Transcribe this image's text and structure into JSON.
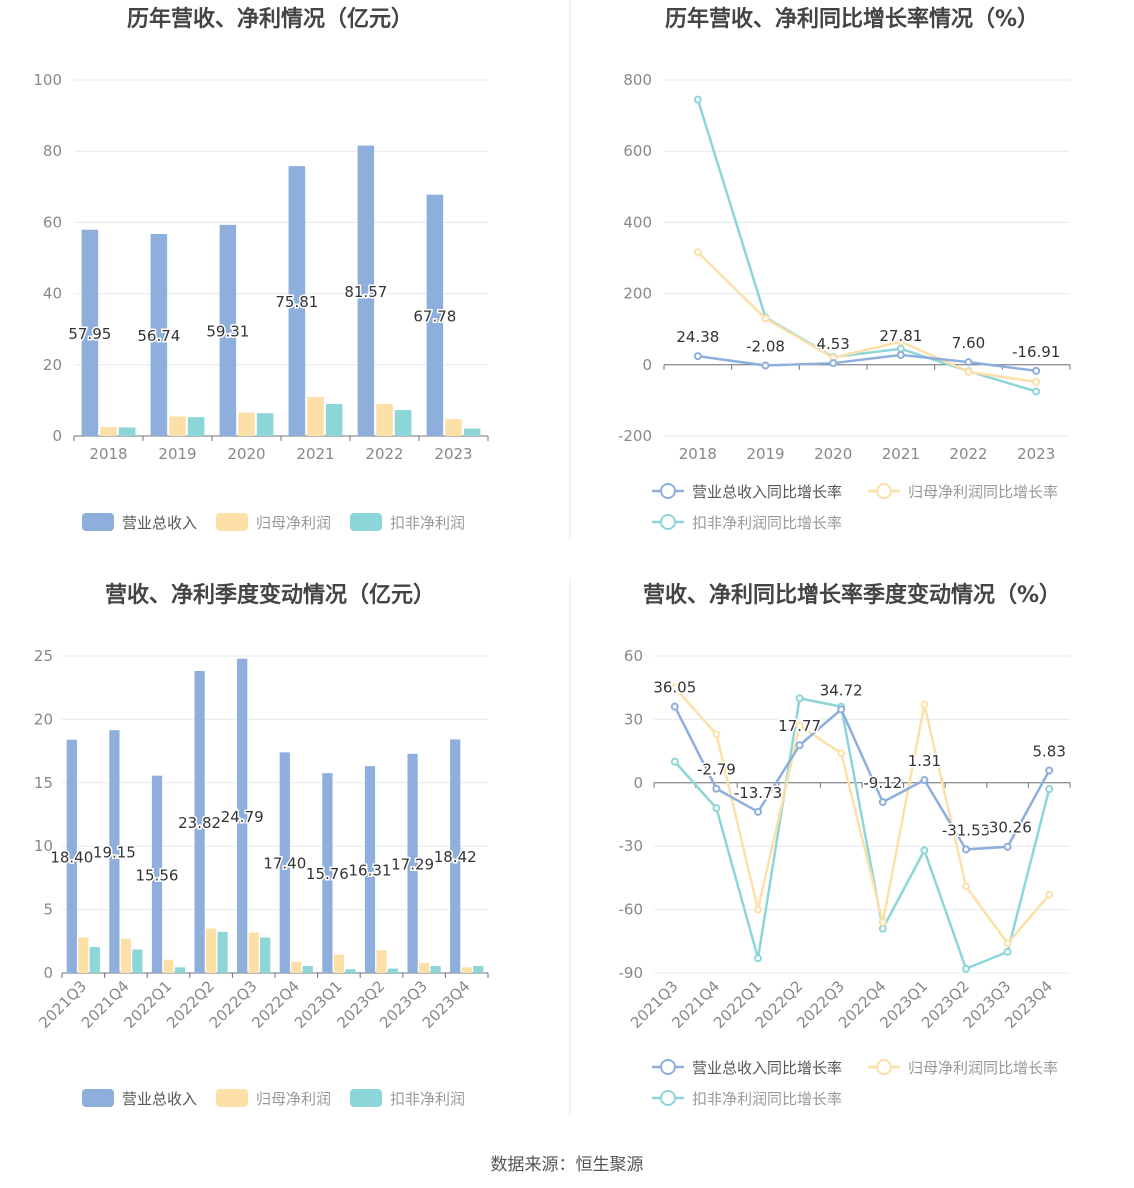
{
  "colors": {
    "revenue": "#8eaedc",
    "net_profit": "#fde0a8",
    "deducted_profit": "#8dd6d8",
    "axis_text": "#888888",
    "grid": "#e6e9f0",
    "title": "#444444"
  },
  "source": "数据来源：恒生聚源",
  "chart_data": [
    {
      "type": "bar",
      "title": "历年营收、净利情况（亿元）",
      "categories": [
        "2018",
        "2019",
        "2020",
        "2021",
        "2022",
        "2023"
      ],
      "ylim": [
        0,
        100
      ],
      "yticks": [
        0,
        20,
        40,
        60,
        80,
        100
      ],
      "legend": "bottom",
      "series": [
        {
          "name": "营业总收入",
          "values": [
            57.95,
            56.74,
            59.31,
            75.81,
            81.57,
            67.78
          ],
          "labels": [
            "57.95",
            "56.74",
            "59.31",
            "75.81",
            "81.57",
            "67.78"
          ]
        },
        {
          "name": "归母净利润",
          "values": [
            2.5,
            5.5,
            6.6,
            11.0,
            9.0,
            4.7
          ]
        },
        {
          "name": "扣非净利润",
          "values": [
            2.4,
            5.3,
            6.4,
            9.0,
            7.3,
            2.1
          ]
        }
      ]
    },
    {
      "type": "line",
      "title": "历年营收、净利同比增长率情况（%）",
      "categories": [
        "2018",
        "2019",
        "2020",
        "2021",
        "2022",
        "2023"
      ],
      "ylim": [
        -200,
        800
      ],
      "yticks": [
        -200,
        0,
        200,
        400,
        600,
        800
      ],
      "legend": "bottom",
      "series": [
        {
          "name": "营业总收入同比增长率",
          "values": [
            24.38,
            -2.08,
            4.53,
            27.81,
            7.6,
            -16.91
          ],
          "labels": [
            "24.38",
            "-2.08",
            "4.53",
            "27.81",
            "7.60",
            "-16.91"
          ]
        },
        {
          "name": "归母净利润同比增长率",
          "values": [
            316,
            130,
            20,
            65,
            -20,
            -48
          ]
        },
        {
          "name": "扣非净利润同比增长率",
          "values": [
            745,
            133,
            22,
            45,
            -18,
            -75
          ]
        }
      ]
    },
    {
      "type": "bar",
      "title": "营收、净利季度变动情况（亿元）",
      "categories": [
        "2021Q3",
        "2021Q4",
        "2022Q1",
        "2022Q2",
        "2022Q3",
        "2022Q4",
        "2023Q1",
        "2023Q2",
        "2023Q3",
        "2023Q4"
      ],
      "ylim": [
        0,
        25
      ],
      "yticks": [
        0,
        5,
        10,
        15,
        20,
        25
      ],
      "legend": "bottom",
      "series": [
        {
          "name": "营业总收入",
          "values": [
            18.4,
            19.15,
            15.56,
            23.82,
            24.79,
            17.4,
            15.76,
            16.31,
            17.29,
            18.42
          ],
          "labels": [
            "18.40",
            "19.15",
            "15.56",
            "23.82",
            "24.79",
            "17.40",
            "15.76",
            "16.31",
            "17.29",
            "18.42"
          ]
        },
        {
          "name": "归母净利润",
          "values": [
            2.8,
            2.7,
            1.05,
            3.5,
            3.2,
            0.9,
            1.45,
            1.8,
            0.8,
            0.45
          ]
        },
        {
          "name": "扣非净利润",
          "values": [
            2.05,
            1.85,
            0.45,
            3.25,
            2.8,
            0.55,
            0.3,
            0.35,
            0.55,
            0.55
          ]
        }
      ]
    },
    {
      "type": "line",
      "title": "营收、净利同比增长率季度变动情况（%）",
      "categories": [
        "2021Q3",
        "2021Q4",
        "2022Q1",
        "2022Q2",
        "2022Q3",
        "2022Q4",
        "2023Q1",
        "2023Q2",
        "2023Q3",
        "2023Q4"
      ],
      "ylim": [
        -90,
        60
      ],
      "yticks": [
        -90,
        -60,
        -30,
        0,
        30,
        60
      ],
      "legend": "bottom",
      "series": [
        {
          "name": "营业总收入同比增长率",
          "values": [
            36.05,
            -2.79,
            -13.73,
            17.77,
            34.72,
            -9.12,
            1.31,
            -31.53,
            -30.26,
            5.83
          ],
          "labels": [
            "36.05",
            "-2.79",
            "-13.73",
            "17.77",
            "34.72",
            "-9.12",
            "1.31",
            "-31.53",
            "-30.26",
            "5.83"
          ]
        },
        {
          "name": "归母净利润同比增长率",
          "values": [
            45,
            23,
            -60,
            27,
            14,
            -66,
            37,
            -49,
            -76,
            -53
          ]
        },
        {
          "name": "扣非净利润同比增长率",
          "values": [
            10,
            -12,
            -83,
            40,
            36,
            -69,
            -32,
            -88,
            -80,
            -3
          ]
        }
      ]
    }
  ]
}
